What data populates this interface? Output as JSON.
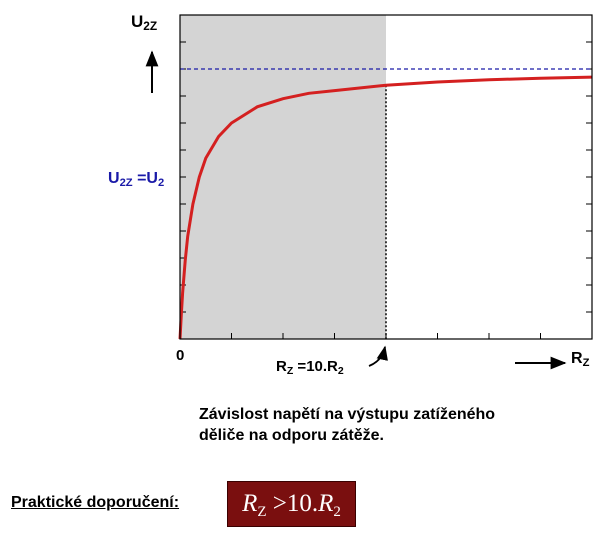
{
  "chart_data": {
    "type": "line",
    "title": "",
    "ylabel": "U2Z",
    "xlabel": "RZ",
    "x_origin_label": "0",
    "xlim": [
      0,
      16
    ],
    "ylim": [
      0,
      1.2
    ],
    "grid": false,
    "reference_line": {
      "label": "U2Z =U2",
      "y": 1.0,
      "color": "#1a1aa8",
      "style": "dashed"
    },
    "shaded_region": {
      "x": [
        0,
        8
      ],
      "color": "#d4d4d4",
      "label": "RZ =10.R2"
    },
    "series": [
      {
        "color": "#d42020",
        "x": [
          0,
          0.05,
          0.1,
          0.2,
          0.3,
          0.5,
          0.75,
          1,
          1.5,
          2,
          3,
          4,
          5,
          6,
          8,
          10,
          12,
          14,
          16
        ],
        "y": [
          0,
          0.09,
          0.17,
          0.29,
          0.38,
          0.5,
          0.6,
          0.67,
          0.75,
          0.8,
          0.86,
          0.89,
          0.91,
          0.92,
          0.94,
          0.952,
          0.96,
          0.966,
          0.97
        ]
      }
    ]
  },
  "labels": {
    "y_axis_main": "U",
    "y_axis_sub": "2Z",
    "ref_main_1": "U",
    "ref_sub_1": "2Z",
    "ref_eq": " =U",
    "ref_sub_2": "2",
    "x_zero": "0",
    "marker_main": "R",
    "marker_sub_1": "Z",
    "marker_eq": " =10.R",
    "marker_sub_2": "2",
    "x_axis_main": "R",
    "x_axis_sub": "Z"
  },
  "caption": {
    "line1": "Závislost napětí na výstupu zatíženého",
    "line2": "děliče na odporu zátěže."
  },
  "recommendation": {
    "label": "Praktické doporučení:",
    "formula_r1": "R",
    "formula_s1": "Z",
    "formula_op": " >10.",
    "formula_r2": "R",
    "formula_s2": "2"
  },
  "colors": {
    "reference": "#1a1aa8",
    "curve": "#d42020",
    "shade": "#d4d4d4",
    "formula_bg": "#7a0f0f"
  }
}
